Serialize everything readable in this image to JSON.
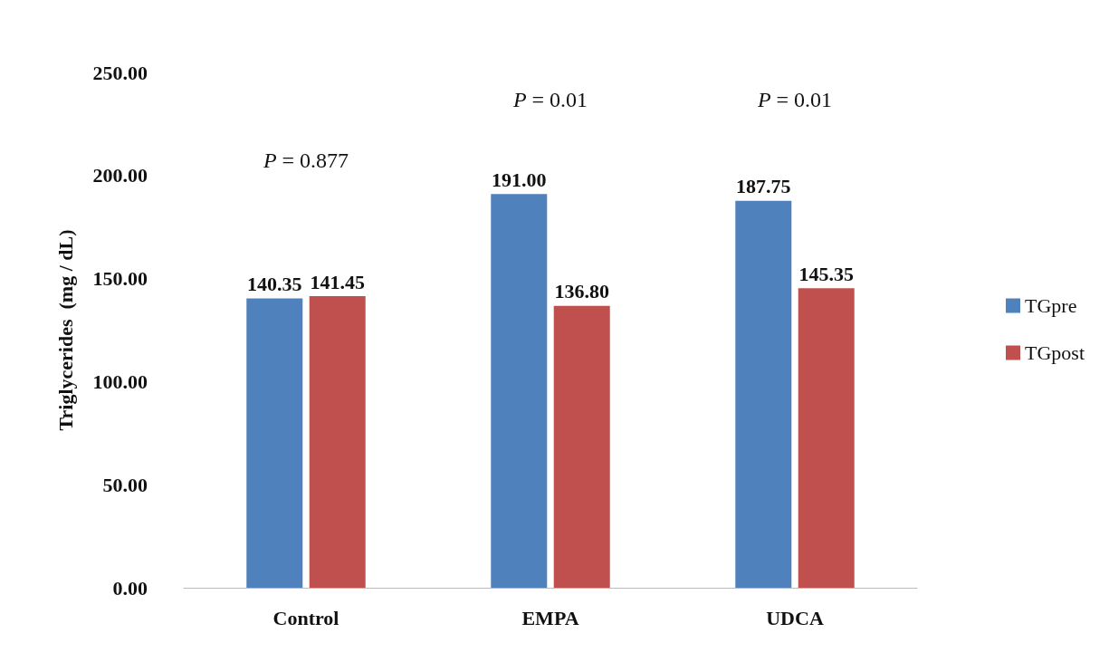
{
  "chart_data": {
    "type": "bar",
    "ylabel": "Triglycerides  (mg / dL)",
    "categories": [
      "Control",
      "EMPA",
      "UDCA"
    ],
    "series": [
      {
        "name": "TGpre",
        "color": "#4f81bd",
        "values": [
          140.35,
          191.0,
          187.75
        ],
        "value_labels": [
          "140.35",
          "191.00",
          "187.75"
        ]
      },
      {
        "name": "TGpost",
        "color": "#c0504d",
        "values": [
          141.45,
          136.8,
          145.35
        ],
        "value_labels": [
          "141.45",
          "136.80",
          "145.35"
        ]
      }
    ],
    "ylim": [
      0,
      250
    ],
    "yticks": [
      {
        "value": 0,
        "label": "0.00"
      },
      {
        "value": 50,
        "label": "50.00"
      },
      {
        "value": 100,
        "label": "100.00"
      },
      {
        "value": 150,
        "label": "150.00"
      },
      {
        "value": 200,
        "label": "200.00"
      },
      {
        "value": 250,
        "label": "250.00"
      }
    ],
    "grid": false,
    "legend": "right",
    "annotations": [
      "P = 0.877",
      "P = 0.01",
      "P = 0.01"
    ]
  }
}
